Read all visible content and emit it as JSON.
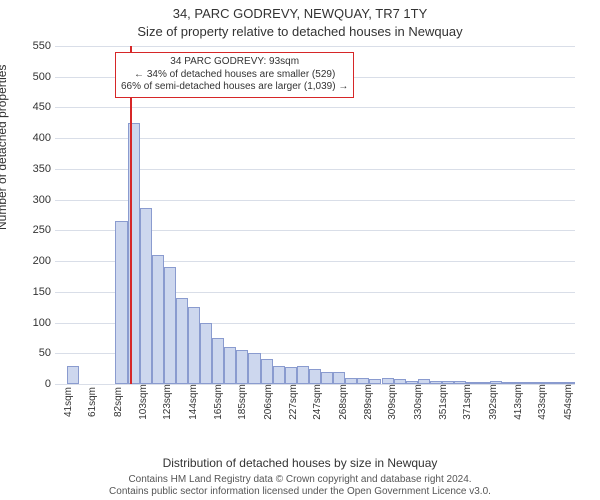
{
  "header": {
    "main_title": "34, PARC GODREVY, NEWQUAY, TR7 1TY",
    "sub_title": "Size of property relative to detached houses in Newquay"
  },
  "chart": {
    "type": "histogram",
    "ylabel": "Number of detached properties",
    "xlabel": "Distribution of detached houses by size in Newquay",
    "ylim": [
      0,
      550
    ],
    "yticks": [
      0,
      50,
      100,
      150,
      200,
      250,
      300,
      350,
      400,
      450,
      500,
      550
    ],
    "xticks": [
      "41sqm",
      "61sqm",
      "82sqm",
      "103sqm",
      "123sqm",
      "144sqm",
      "165sqm",
      "185sqm",
      "206sqm",
      "227sqm",
      "247sqm",
      "268sqm",
      "289sqm",
      "309sqm",
      "330sqm",
      "351sqm",
      "371sqm",
      "392sqm",
      "413sqm",
      "433sqm",
      "454sqm"
    ],
    "xmin": 30,
    "xmax": 460,
    "bin_width": 10,
    "values": [
      0,
      30,
      0,
      0,
      0,
      265,
      425,
      287,
      210,
      190,
      140,
      125,
      100,
      75,
      60,
      55,
      50,
      40,
      30,
      28,
      30,
      25,
      20,
      20,
      10,
      10,
      8,
      10,
      8,
      5,
      8,
      5,
      5,
      5,
      3,
      3,
      5,
      3,
      3,
      3,
      3,
      3,
      3
    ],
    "bar_fill": "#cdd7ee",
    "bar_stroke": "#8a9bcf",
    "grid_color": "rgba(180,190,210,0.5)",
    "background_color": "#ffffff",
    "marker": {
      "position_sqm": 93,
      "color": "#d62728"
    },
    "annotation": {
      "line1": "34 PARC GODREVY: 93sqm",
      "line2": "← 34% of detached houses are smaller (529)",
      "line3": "66% of semi-detached houses are larger (1,039) →",
      "border_color": "#d62728"
    }
  },
  "footnote": {
    "line1": "Contains HM Land Registry data © Crown copyright and database right 2024.",
    "line2": "Contains public sector information licensed under the Open Government Licence v3.0."
  }
}
